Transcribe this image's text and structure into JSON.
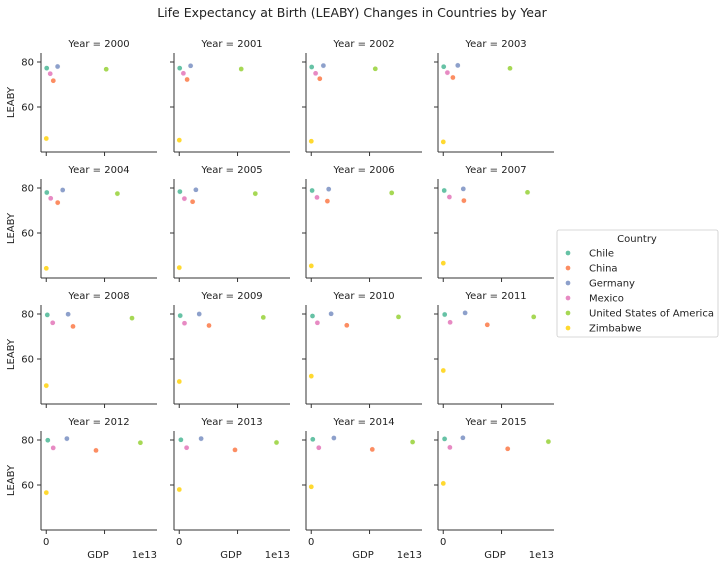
{
  "title": "Life Expectancy at Birth (LEABY) Changes in Countries by Year",
  "legend": {
    "title": "Country",
    "placement": "right",
    "entries": [
      {
        "name": "Chile",
        "color": "#66c2a5"
      },
      {
        "name": "China",
        "color": "#fc8d62"
      },
      {
        "name": "Germany",
        "color": "#8da0cb"
      },
      {
        "name": "Mexico",
        "color": "#e78ac3"
      },
      {
        "name": "United States of America",
        "color": "#a6d854"
      },
      {
        "name": "Zimbabwe",
        "color": "#ffd92f"
      }
    ]
  },
  "chart_data": {
    "type": "scatter",
    "facet_by": "Year",
    "facet_label_prefix": "Year = ",
    "xlabel": "GDP",
    "ylabel": "LEABY",
    "x_offset_label": "1e13",
    "x_scale": 10000000000000.0,
    "x_ticks": [
      0,
      1
    ],
    "x_tick_labels": [
      "0",
      ""
    ],
    "y_ticks": [
      60,
      80
    ],
    "xlim": [
      -0.09,
      1.9
    ],
    "ylim": [
      40,
      84
    ],
    "countries": [
      "Chile",
      "China",
      "Germany",
      "Mexico",
      "United States of America",
      "Zimbabwe"
    ],
    "facets": [
      {
        "year": 2000,
        "points": [
          [
            0.0078,
            77.3
          ],
          [
            0.121,
            71.7
          ],
          [
            0.194,
            78.0
          ],
          [
            0.068,
            74.8
          ],
          [
            1.029,
            76.8
          ],
          [
            0.0007,
            46.0
          ]
        ]
      },
      {
        "year": 2001,
        "points": [
          [
            0.0071,
            77.3
          ],
          [
            0.134,
            72.2
          ],
          [
            0.195,
            78.3
          ],
          [
            0.072,
            75.0
          ],
          [
            1.062,
            76.9
          ],
          [
            0.0007,
            45.3
          ]
        ]
      },
      {
        "year": 2002,
        "points": [
          [
            0.007,
            77.8
          ],
          [
            0.147,
            72.6
          ],
          [
            0.208,
            78.4
          ],
          [
            0.074,
            75.0
          ],
          [
            1.098,
            77.0
          ],
          [
            0.0006,
            44.8
          ]
        ]
      },
      {
        "year": 2003,
        "points": [
          [
            0.0076,
            77.9
          ],
          [
            0.166,
            73.1
          ],
          [
            0.25,
            78.5
          ],
          [
            0.071,
            75.3
          ],
          [
            1.145,
            77.2
          ],
          [
            0.0006,
            44.5
          ]
        ]
      },
      {
        "year": 2004,
        "points": [
          [
            0.01,
            78.0
          ],
          [
            0.196,
            73.5
          ],
          [
            0.282,
            79.1
          ],
          [
            0.077,
            75.4
          ],
          [
            1.221,
            77.5
          ],
          [
            0.0006,
            44.3
          ]
        ]
      },
      {
        "year": 2005,
        "points": [
          [
            0.012,
            78.4
          ],
          [
            0.229,
            73.9
          ],
          [
            0.286,
            79.2
          ],
          [
            0.088,
            75.3
          ],
          [
            1.304,
            77.5
          ],
          [
            0.0006,
            44.6
          ]
        ]
      },
      {
        "year": 2006,
        "points": [
          [
            0.015,
            78.9
          ],
          [
            0.277,
            74.2
          ],
          [
            0.3,
            79.5
          ],
          [
            0.099,
            75.8
          ],
          [
            1.381,
            77.8
          ],
          [
            0.0005,
            45.4
          ]
        ]
      },
      {
        "year": 2007,
        "points": [
          [
            0.017,
            78.9
          ],
          [
            0.355,
            74.4
          ],
          [
            0.344,
            79.6
          ],
          [
            0.105,
            76.0
          ],
          [
            1.445,
            78.1
          ],
          [
            0.0005,
            46.6
          ]
        ]
      },
      {
        "year": 2008,
        "points": [
          [
            0.018,
            79.6
          ],
          [
            0.459,
            74.5
          ],
          [
            0.375,
            79.9
          ],
          [
            0.111,
            76.1
          ],
          [
            1.471,
            78.2
          ],
          [
            0.0004,
            48.2
          ]
        ]
      },
      {
        "year": 2009,
        "points": [
          [
            0.017,
            79.3
          ],
          [
            0.51,
            74.9
          ],
          [
            0.342,
            80.0
          ],
          [
            0.09,
            75.9
          ],
          [
            1.442,
            78.5
          ],
          [
            0.0008,
            50.0
          ]
        ]
      },
      {
        "year": 2010,
        "points": [
          [
            0.022,
            79.1
          ],
          [
            0.61,
            75.0
          ],
          [
            0.341,
            80.1
          ],
          [
            0.105,
            76.1
          ],
          [
            1.496,
            78.7
          ],
          [
            0.001,
            52.4
          ]
        ]
      },
      {
        "year": 2011,
        "points": [
          [
            0.025,
            79.8
          ],
          [
            0.755,
            75.2
          ],
          [
            0.375,
            80.5
          ],
          [
            0.117,
            76.3
          ],
          [
            1.552,
            78.7
          ],
          [
            0.001,
            54.9
          ]
        ]
      },
      {
        "year": 2012,
        "points": [
          [
            0.027,
            79.9
          ],
          [
            0.853,
            75.4
          ],
          [
            0.354,
            80.6
          ],
          [
            0.12,
            76.5
          ],
          [
            1.616,
            78.8
          ],
          [
            0.0012,
            56.6
          ]
        ]
      },
      {
        "year": 2013,
        "points": [
          [
            0.028,
            80.1
          ],
          [
            0.957,
            75.6
          ],
          [
            0.375,
            80.6
          ],
          [
            0.127,
            76.6
          ],
          [
            1.669,
            78.9
          ],
          [
            0.0014,
            58.0
          ]
        ]
      },
      {
        "year": 2014,
        "points": [
          [
            0.026,
            80.3
          ],
          [
            1.048,
            75.8
          ],
          [
            0.389,
            80.9
          ],
          [
            0.13,
            76.6
          ],
          [
            1.739,
            79.1
          ],
          [
            0.0014,
            59.2
          ]
        ]
      },
      {
        "year": 2015,
        "points": [
          [
            0.024,
            80.5
          ],
          [
            1.106,
            76.1
          ],
          [
            0.338,
            81.0
          ],
          [
            0.115,
            76.7
          ],
          [
            1.804,
            79.3
          ],
          [
            0.0014,
            60.7
          ]
        ]
      }
    ]
  }
}
